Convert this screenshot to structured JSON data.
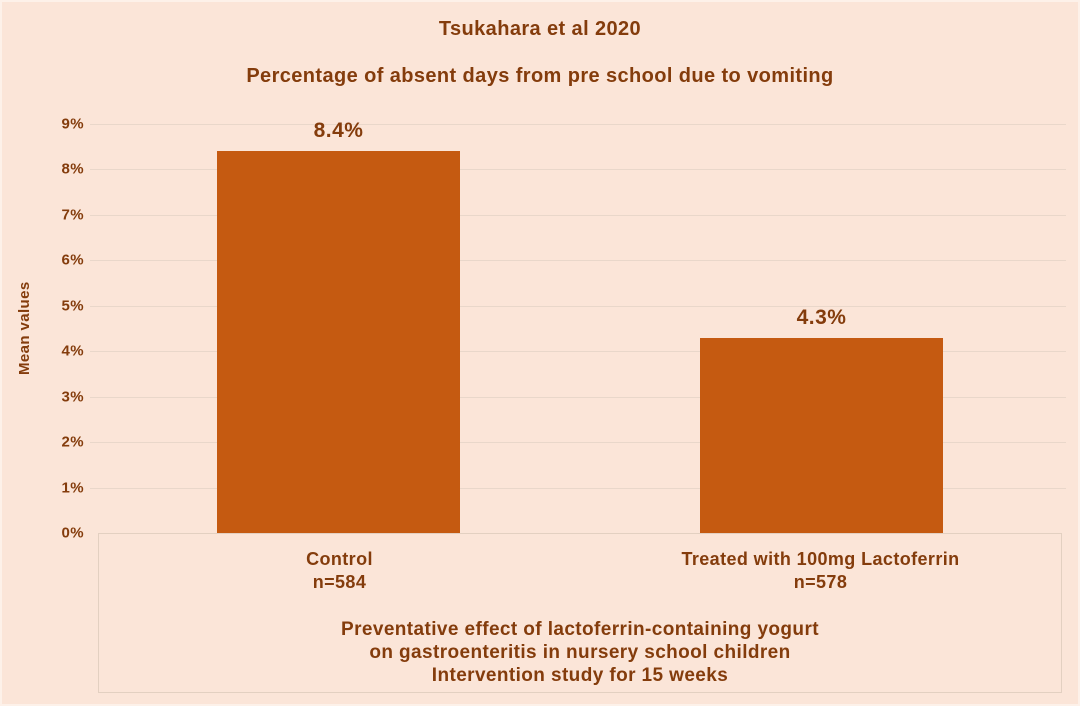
{
  "chart_data": {
    "type": "bar",
    "title": "Tsukahara et al 2020",
    "subtitle": "Percentage of absent days from pre school due to vomiting",
    "ylabel": "Mean values",
    "ylim": [
      0,
      9
    ],
    "yticks": [
      0,
      1,
      2,
      3,
      4,
      5,
      6,
      7,
      8,
      9
    ],
    "ytick_labels": [
      "0%",
      "1%",
      "2%",
      "3%",
      "4%",
      "5%",
      "6%",
      "7%",
      "8%",
      "9%"
    ],
    "grid": true,
    "legend": "none",
    "categories": [
      {
        "label": "Control",
        "n": "n=584"
      },
      {
        "label": "Treated with 100mg Lactoferrin",
        "n": "n=578"
      }
    ],
    "values": [
      8.4,
      4.3
    ],
    "value_labels": [
      "8.4%",
      "4.3%"
    ],
    "caption_lines": [
      "Preventative effect of lactoferrin-containing yogurt",
      "on gastroenteritis in nursery school children",
      "Intervention study for 15 weeks"
    ],
    "colors": {
      "background": "#fbe5d8",
      "bar": "#c55a11",
      "text": "#843c0c",
      "grid": "#e9d7ca",
      "box_border": "#e3d0c1"
    }
  }
}
